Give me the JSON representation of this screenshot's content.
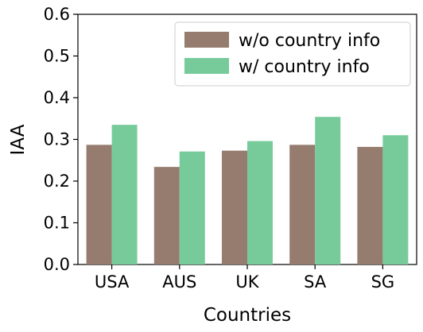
{
  "chart_data": {
    "type": "bar",
    "categories": [
      "USA",
      "AUS",
      "UK",
      "SA",
      "SG"
    ],
    "series": [
      {
        "name": "w/o country info",
        "values": [
          0.287,
          0.234,
          0.273,
          0.287,
          0.282
        ],
        "color": "#957c6f"
      },
      {
        "name": "w/ country info",
        "values": [
          0.335,
          0.271,
          0.296,
          0.354,
          0.31
        ],
        "color": "#77cb9b"
      }
    ],
    "xlabel": "Countries",
    "ylabel": "IAA",
    "ylim": [
      0.0,
      0.6
    ],
    "yticks": [
      "0.0",
      "0.1",
      "0.2",
      "0.3",
      "0.4",
      "0.5",
      "0.6"
    ],
    "grid": false,
    "legend_position": "top-right"
  }
}
